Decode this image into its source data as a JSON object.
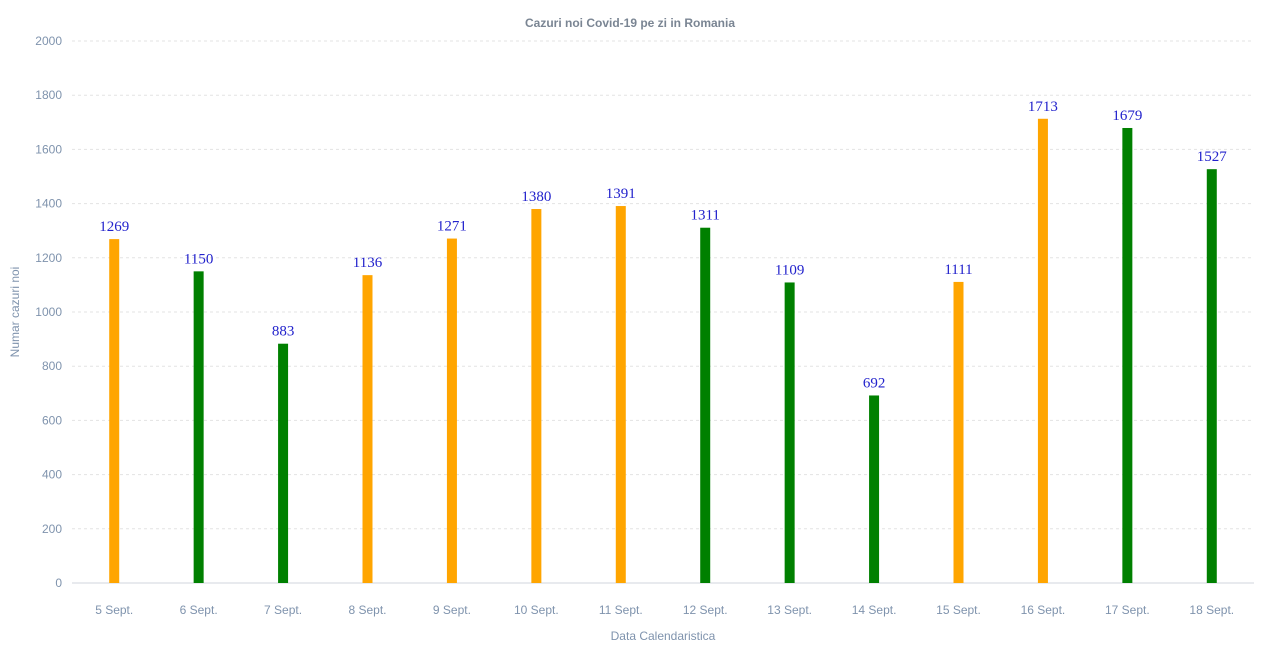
{
  "chart_data": {
    "type": "bar",
    "title": "Cazuri noi Covid-19 pe zi in Romania",
    "xlabel": "Data Calendaristica",
    "ylabel": "Numar cazuri noi",
    "ylim": [
      0,
      2000
    ],
    "yticks": [
      0,
      200,
      400,
      600,
      800,
      1000,
      1200,
      1400,
      1600,
      1800,
      2000
    ],
    "grid": true,
    "categories": [
      "5 Sept.",
      "6 Sept.",
      "7 Sept.",
      "8 Sept.",
      "9 Sept.",
      "10 Sept.",
      "11 Sept.",
      "12 Sept.",
      "13 Sept.",
      "14 Sept.",
      "15 Sept.",
      "16 Sept.",
      "17 Sept.",
      "18 Sept."
    ],
    "values": [
      1269,
      1150,
      883,
      1136,
      1271,
      1380,
      1391,
      1311,
      1109,
      692,
      1111,
      1713,
      1679,
      1527
    ],
    "bar_colors": [
      "#ffa500",
      "#008000",
      "#008000",
      "#ffa500",
      "#ffa500",
      "#ffa500",
      "#ffa500",
      "#008000",
      "#008000",
      "#008000",
      "#ffa500",
      "#ffa500",
      "#008000",
      "#008000"
    ],
    "data_labels": [
      "1269",
      "1150",
      "883",
      "1136",
      "1271",
      "1380",
      "1391",
      "1311",
      "1109",
      "692",
      "1111",
      "1713",
      "1679",
      "1527"
    ]
  }
}
